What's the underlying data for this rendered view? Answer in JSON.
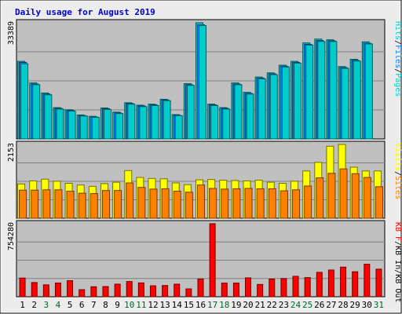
{
  "chart_data": {
    "type": "bar",
    "title": "Daily usage for August 2019",
    "colors": {
      "frame": "#ececec",
      "panel": "#c0c0c0",
      "title": "#0000cc",
      "hits": "#00cccc",
      "files": "#0080ff",
      "pages": "#00cccc",
      "visits": "#ffff00",
      "sites": "#ff8000",
      "kbytes": "#ff0000",
      "weekend_label": "#006633",
      "weekday_label": "#000000"
    },
    "categories": [
      "1",
      "2",
      "3",
      "4",
      "5",
      "6",
      "7",
      "8",
      "9",
      "10",
      "11",
      "12",
      "13",
      "14",
      "15",
      "16",
      "17",
      "18",
      "19",
      "20",
      "21",
      "22",
      "23",
      "24",
      "25",
      "26",
      "27",
      "28",
      "29",
      "30",
      "31"
    ],
    "weekend_days": [
      3,
      4,
      10,
      11,
      17,
      18,
      24,
      25,
      31
    ],
    "panels": [
      {
        "id": "requests",
        "ymax_label": "33389",
        "ymax": 33389,
        "ylabels": [
          "Hits",
          "Files",
          "Pages"
        ],
        "ylabel_slashes": [
          "/",
          "/"
        ],
        "series": [
          {
            "name": "Hits",
            "color": "#00cccc",
            "values": [
              22300,
              16100,
              13200,
              9000,
              8400,
              6900,
              6500,
              8900,
              7700,
              10400,
              9700,
              10000,
              11400,
              7000,
              15900,
              33389,
              10000,
              9000,
              16100,
              13400,
              17800,
              19000,
              21200,
              22300,
              27600,
              28700,
              28500,
              20800,
              22900,
              27900,
              0
            ]
          },
          {
            "name": "Files",
            "color": "#0080ff",
            "values": [
              22000,
              15800,
              12900,
              8800,
              8200,
              6700,
              6300,
              8700,
              7500,
              10200,
              9500,
              9800,
              11200,
              6800,
              15600,
              32800,
              9800,
              8800,
              15800,
              13100,
              17500,
              18700,
              20900,
              22000,
              27200,
              28300,
              28200,
              20500,
              22600,
              27500,
              0
            ]
          },
          {
            "name": "Pages",
            "color": "#00cccc",
            "values": [
              21600,
              15600,
              12700,
              8600,
              8000,
              6600,
              6200,
              8500,
              7300,
              10000,
              9300,
              9600,
              11000,
              6700,
              15400,
              32600,
              9600,
              8600,
              15600,
              12900,
              17300,
              18500,
              20700,
              21800,
              27000,
              28000,
              28000,
              20300,
              22400,
              27300,
              0
            ]
          }
        ]
      },
      {
        "id": "visitors",
        "ymax_label": "2153",
        "ymax": 2153,
        "ylabels": [
          "Visits",
          "Sites"
        ],
        "ylabel_slashes": [
          "/"
        ],
        "series": [
          {
            "name": "Visits",
            "color": "#ffff00",
            "values": [
              1000,
              1090,
              1140,
              1080,
              1020,
              970,
              930,
              1010,
              1050,
              1390,
              1190,
              1160,
              1150,
              1030,
              980,
              1120,
              1130,
              1110,
              1100,
              1090,
              1110,
              1050,
              1020,
              1080,
              1380,
              1630,
              2100,
              2153,
              1490,
              1380,
              1380
            ]
          },
          {
            "name": "Sites",
            "color": "#ff8000",
            "values": [
              820,
              820,
              830,
              830,
              790,
              730,
              720,
              810,
              810,
              1030,
              900,
              850,
              860,
              790,
              760,
              970,
              870,
              850,
              860,
              870,
              860,
              860,
              800,
              830,
              940,
              1180,
              1310,
              1440,
              1300,
              1190,
              920
            ]
          }
        ]
      },
      {
        "id": "kbytes",
        "ymax_label": "754280",
        "ymax": 754280,
        "ylabels": [
          "KB F",
          "KB In",
          "KB Out"
        ],
        "ylabel_slashes": [
          "/",
          "/"
        ],
        "series": [
          {
            "name": "KB F",
            "color": "#ff0000",
            "values": [
              193000,
              147000,
              123000,
              142000,
              166000,
              73000,
              103000,
              105000,
              130000,
              157000,
              143000,
              113000,
              116000,
              130000,
              81000,
              183000,
              754280,
              141000,
              141000,
              195000,
              127000,
              183000,
              188000,
              211000,
              198000,
              252000,
              276000,
              306000,
              258000,
              336000,
              285000
            ]
          }
        ]
      }
    ]
  }
}
